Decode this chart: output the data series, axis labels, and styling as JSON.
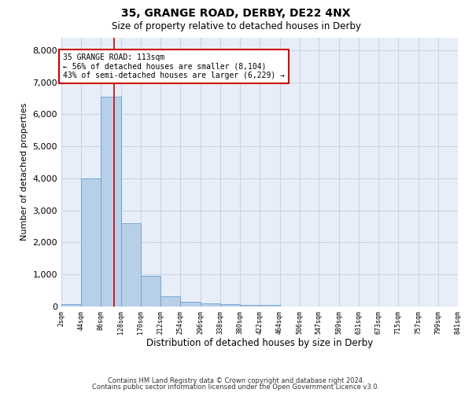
{
  "title1": "35, GRANGE ROAD, DERBY, DE22 4NX",
  "title2": "Size of property relative to detached houses in Derby",
  "xlabel": "Distribution of detached houses by size in Derby",
  "ylabel": "Number of detached properties",
  "annotation_title": "35 GRANGE ROAD: 113sqm",
  "annotation_line1": "← 56% of detached houses are smaller (8,104)",
  "annotation_line2": "43% of semi-detached houses are larger (6,229) →",
  "footer1": "Contains HM Land Registry data © Crown copyright and database right 2024.",
  "footer2": "Contains public sector information licensed under the Open Government Licence v3.0.",
  "bar_color": "#b8cfe8",
  "bar_edge_color": "#6a9fd0",
  "grid_color": "#c8d4e8",
  "annotation_line_color": "#cc0000",
  "annotation_box_color": "#cc0000",
  "background_color": "#e8eef8",
  "property_size_sqm": 113,
  "bin_width": 42,
  "bin_starts": [
    2,
    44,
    86,
    128,
    170,
    212,
    254,
    296,
    338,
    380,
    422,
    464,
    506,
    547,
    589,
    631,
    673,
    715,
    757,
    799
  ],
  "bin_counts": [
    80,
    4000,
    6550,
    2600,
    950,
    320,
    135,
    100,
    75,
    60,
    55,
    0,
    0,
    0,
    0,
    0,
    0,
    0,
    0,
    0
  ],
  "ylim": [
    0,
    8400
  ],
  "yticks": [
    0,
    1000,
    2000,
    3000,
    4000,
    5000,
    6000,
    7000,
    8000
  ],
  "tick_labels": [
    "2sqm",
    "44sqm",
    "86sqm",
    "128sqm",
    "170sqm",
    "212sqm",
    "254sqm",
    "296sqm",
    "338sqm",
    "380sqm",
    "422sqm",
    "464sqm",
    "506sqm",
    "547sqm",
    "589sqm",
    "631sqm",
    "673sqm",
    "715sqm",
    "757sqm",
    "799sqm",
    "841sqm"
  ]
}
